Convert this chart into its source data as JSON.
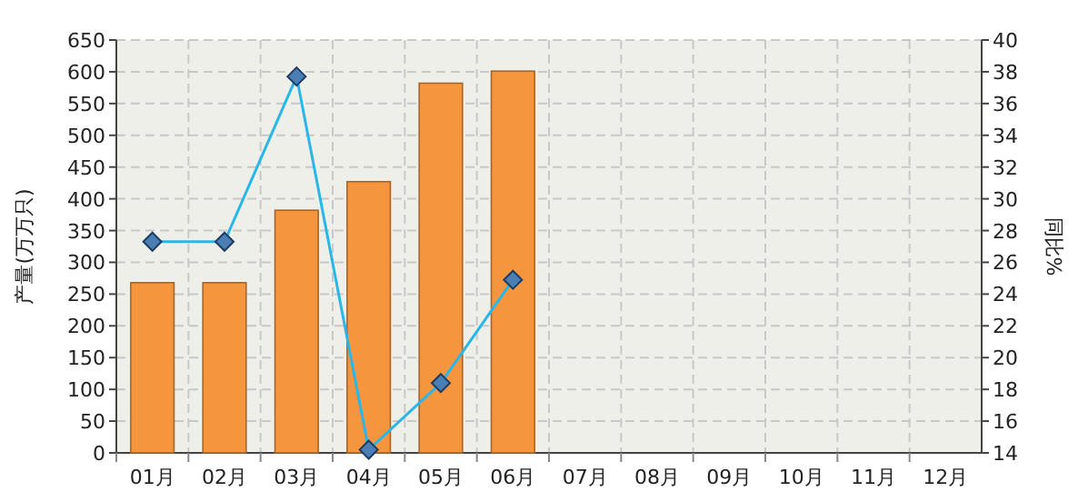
{
  "chart_data": {
    "type": "bar",
    "ylabel": "产量(万万只)",
    "y2label": "同比%",
    "categories": [
      "01月",
      "02月",
      "03月",
      "04月",
      "05月",
      "06月",
      "07月",
      "08月",
      "09月",
      "10月",
      "11月",
      "12月"
    ],
    "series": [
      {
        "color": "#f5963f",
        "values": [
          268,
          268,
          382,
          427,
          582,
          601,
          null,
          null,
          null,
          null,
          null,
          null
        ]
      },
      {
        "type": "line",
        "axis": "y2",
        "color": "#29b6e8",
        "marker": "diamond",
        "values": [
          27.3,
          27.3,
          37.7,
          14.2,
          18.4,
          24.9,
          null,
          null,
          null,
          null,
          null,
          null
        ]
      }
    ],
    "ylim": [
      0,
      650
    ],
    "yticks": [
      0,
      50,
      100,
      150,
      200,
      250,
      300,
      350,
      400,
      450,
      500,
      550,
      600,
      650
    ],
    "y2lim": [
      14,
      40
    ],
    "y2ticks": [
      14,
      16,
      18,
      20,
      22,
      24,
      26,
      28,
      30,
      32,
      34,
      36,
      38,
      40
    ],
    "grid": true
  }
}
